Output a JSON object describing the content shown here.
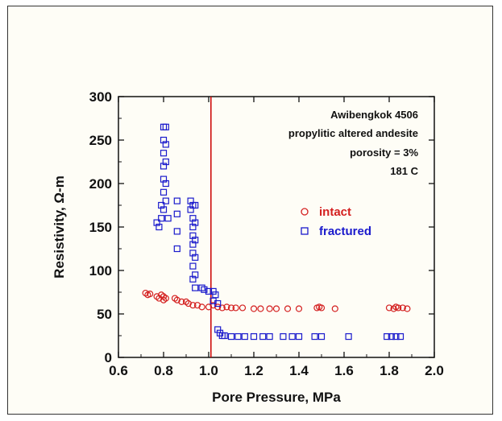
{
  "chart_data": {
    "type": "scatter",
    "xlabel": "Pore Pressure, MPa",
    "ylabel": "Resistivity, Ω-m",
    "xlim": [
      0.6,
      2.0
    ],
    "ylim": [
      0,
      300
    ],
    "xticks": [
      "0.6",
      "0.8",
      "1.0",
      "1.2",
      "1.4",
      "1.6",
      "1.8",
      "2.0"
    ],
    "yticks": [
      "0",
      "50",
      "100",
      "150",
      "200",
      "250",
      "300"
    ],
    "grid": false,
    "legend_position": "right",
    "annotations": [
      "Awibengkok 4506",
      "propylitic altered andesite",
      "porosity = 3%",
      "181 C"
    ],
    "vertical_line": {
      "x": 1.01,
      "color": "#cc0000"
    },
    "series": [
      {
        "name": "intact",
        "marker": "circle",
        "color": "#d42020",
        "points": [
          [
            0.72,
            74
          ],
          [
            0.73,
            72
          ],
          [
            0.74,
            73
          ],
          [
            0.77,
            70
          ],
          [
            0.78,
            68
          ],
          [
            0.79,
            72
          ],
          [
            0.8,
            66
          ],
          [
            0.8,
            70
          ],
          [
            0.81,
            68
          ],
          [
            0.85,
            68
          ],
          [
            0.86,
            66
          ],
          [
            0.88,
            64
          ],
          [
            0.9,
            64
          ],
          [
            0.91,
            62
          ],
          [
            0.93,
            60
          ],
          [
            0.95,
            60
          ],
          [
            0.97,
            58
          ],
          [
            1.0,
            58
          ],
          [
            1.02,
            60
          ],
          [
            1.04,
            58
          ],
          [
            1.06,
            57
          ],
          [
            1.08,
            58
          ],
          [
            1.1,
            57
          ],
          [
            1.12,
            57
          ],
          [
            1.15,
            57
          ],
          [
            1.2,
            56
          ],
          [
            1.23,
            56
          ],
          [
            1.27,
            56
          ],
          [
            1.3,
            56
          ],
          [
            1.35,
            56
          ],
          [
            1.4,
            56
          ],
          [
            1.48,
            57
          ],
          [
            1.49,
            58
          ],
          [
            1.5,
            57
          ],
          [
            1.56,
            56
          ],
          [
            1.8,
            57
          ],
          [
            1.82,
            56
          ],
          [
            1.83,
            58
          ],
          [
            1.84,
            57
          ],
          [
            1.86,
            57
          ],
          [
            1.88,
            56
          ]
        ]
      },
      {
        "name": "fractured",
        "marker": "square",
        "color": "#1a1acc",
        "points": [
          [
            0.77,
            155
          ],
          [
            0.78,
            150
          ],
          [
            0.79,
            175
          ],
          [
            0.79,
            160
          ],
          [
            0.8,
            265
          ],
          [
            0.8,
            250
          ],
          [
            0.8,
            235
          ],
          [
            0.8,
            220
          ],
          [
            0.8,
            205
          ],
          [
            0.8,
            190
          ],
          [
            0.8,
            170
          ],
          [
            0.81,
            265
          ],
          [
            0.81,
            245
          ],
          [
            0.81,
            225
          ],
          [
            0.81,
            200
          ],
          [
            0.81,
            180
          ],
          [
            0.82,
            160
          ],
          [
            0.86,
            180
          ],
          [
            0.86,
            165
          ],
          [
            0.86,
            145
          ],
          [
            0.86,
            125
          ],
          [
            0.92,
            180
          ],
          [
            0.92,
            170
          ],
          [
            0.93,
            175
          ],
          [
            0.93,
            160
          ],
          [
            0.93,
            150
          ],
          [
            0.93,
            140
          ],
          [
            0.93,
            130
          ],
          [
            0.93,
            120
          ],
          [
            0.93,
            105
          ],
          [
            0.93,
            90
          ],
          [
            0.94,
            175
          ],
          [
            0.94,
            155
          ],
          [
            0.94,
            135
          ],
          [
            0.94,
            115
          ],
          [
            0.94,
            95
          ],
          [
            0.94,
            80
          ],
          [
            0.97,
            80
          ],
          [
            0.98,
            78
          ],
          [
            1.0,
            76
          ],
          [
            1.02,
            76
          ],
          [
            1.03,
            72
          ],
          [
            1.02,
            65
          ],
          [
            1.04,
            62
          ],
          [
            1.04,
            32
          ],
          [
            1.05,
            28
          ],
          [
            1.06,
            25
          ],
          [
            1.07,
            25
          ],
          [
            1.1,
            24
          ],
          [
            1.13,
            24
          ],
          [
            1.16,
            24
          ],
          [
            1.2,
            24
          ],
          [
            1.24,
            24
          ],
          [
            1.27,
            24
          ],
          [
            1.33,
            24
          ],
          [
            1.37,
            24
          ],
          [
            1.4,
            24
          ],
          [
            1.47,
            24
          ],
          [
            1.5,
            24
          ],
          [
            1.62,
            24
          ],
          [
            1.79,
            24
          ],
          [
            1.81,
            24
          ],
          [
            1.83,
            24
          ],
          [
            1.85,
            24
          ]
        ]
      }
    ]
  }
}
